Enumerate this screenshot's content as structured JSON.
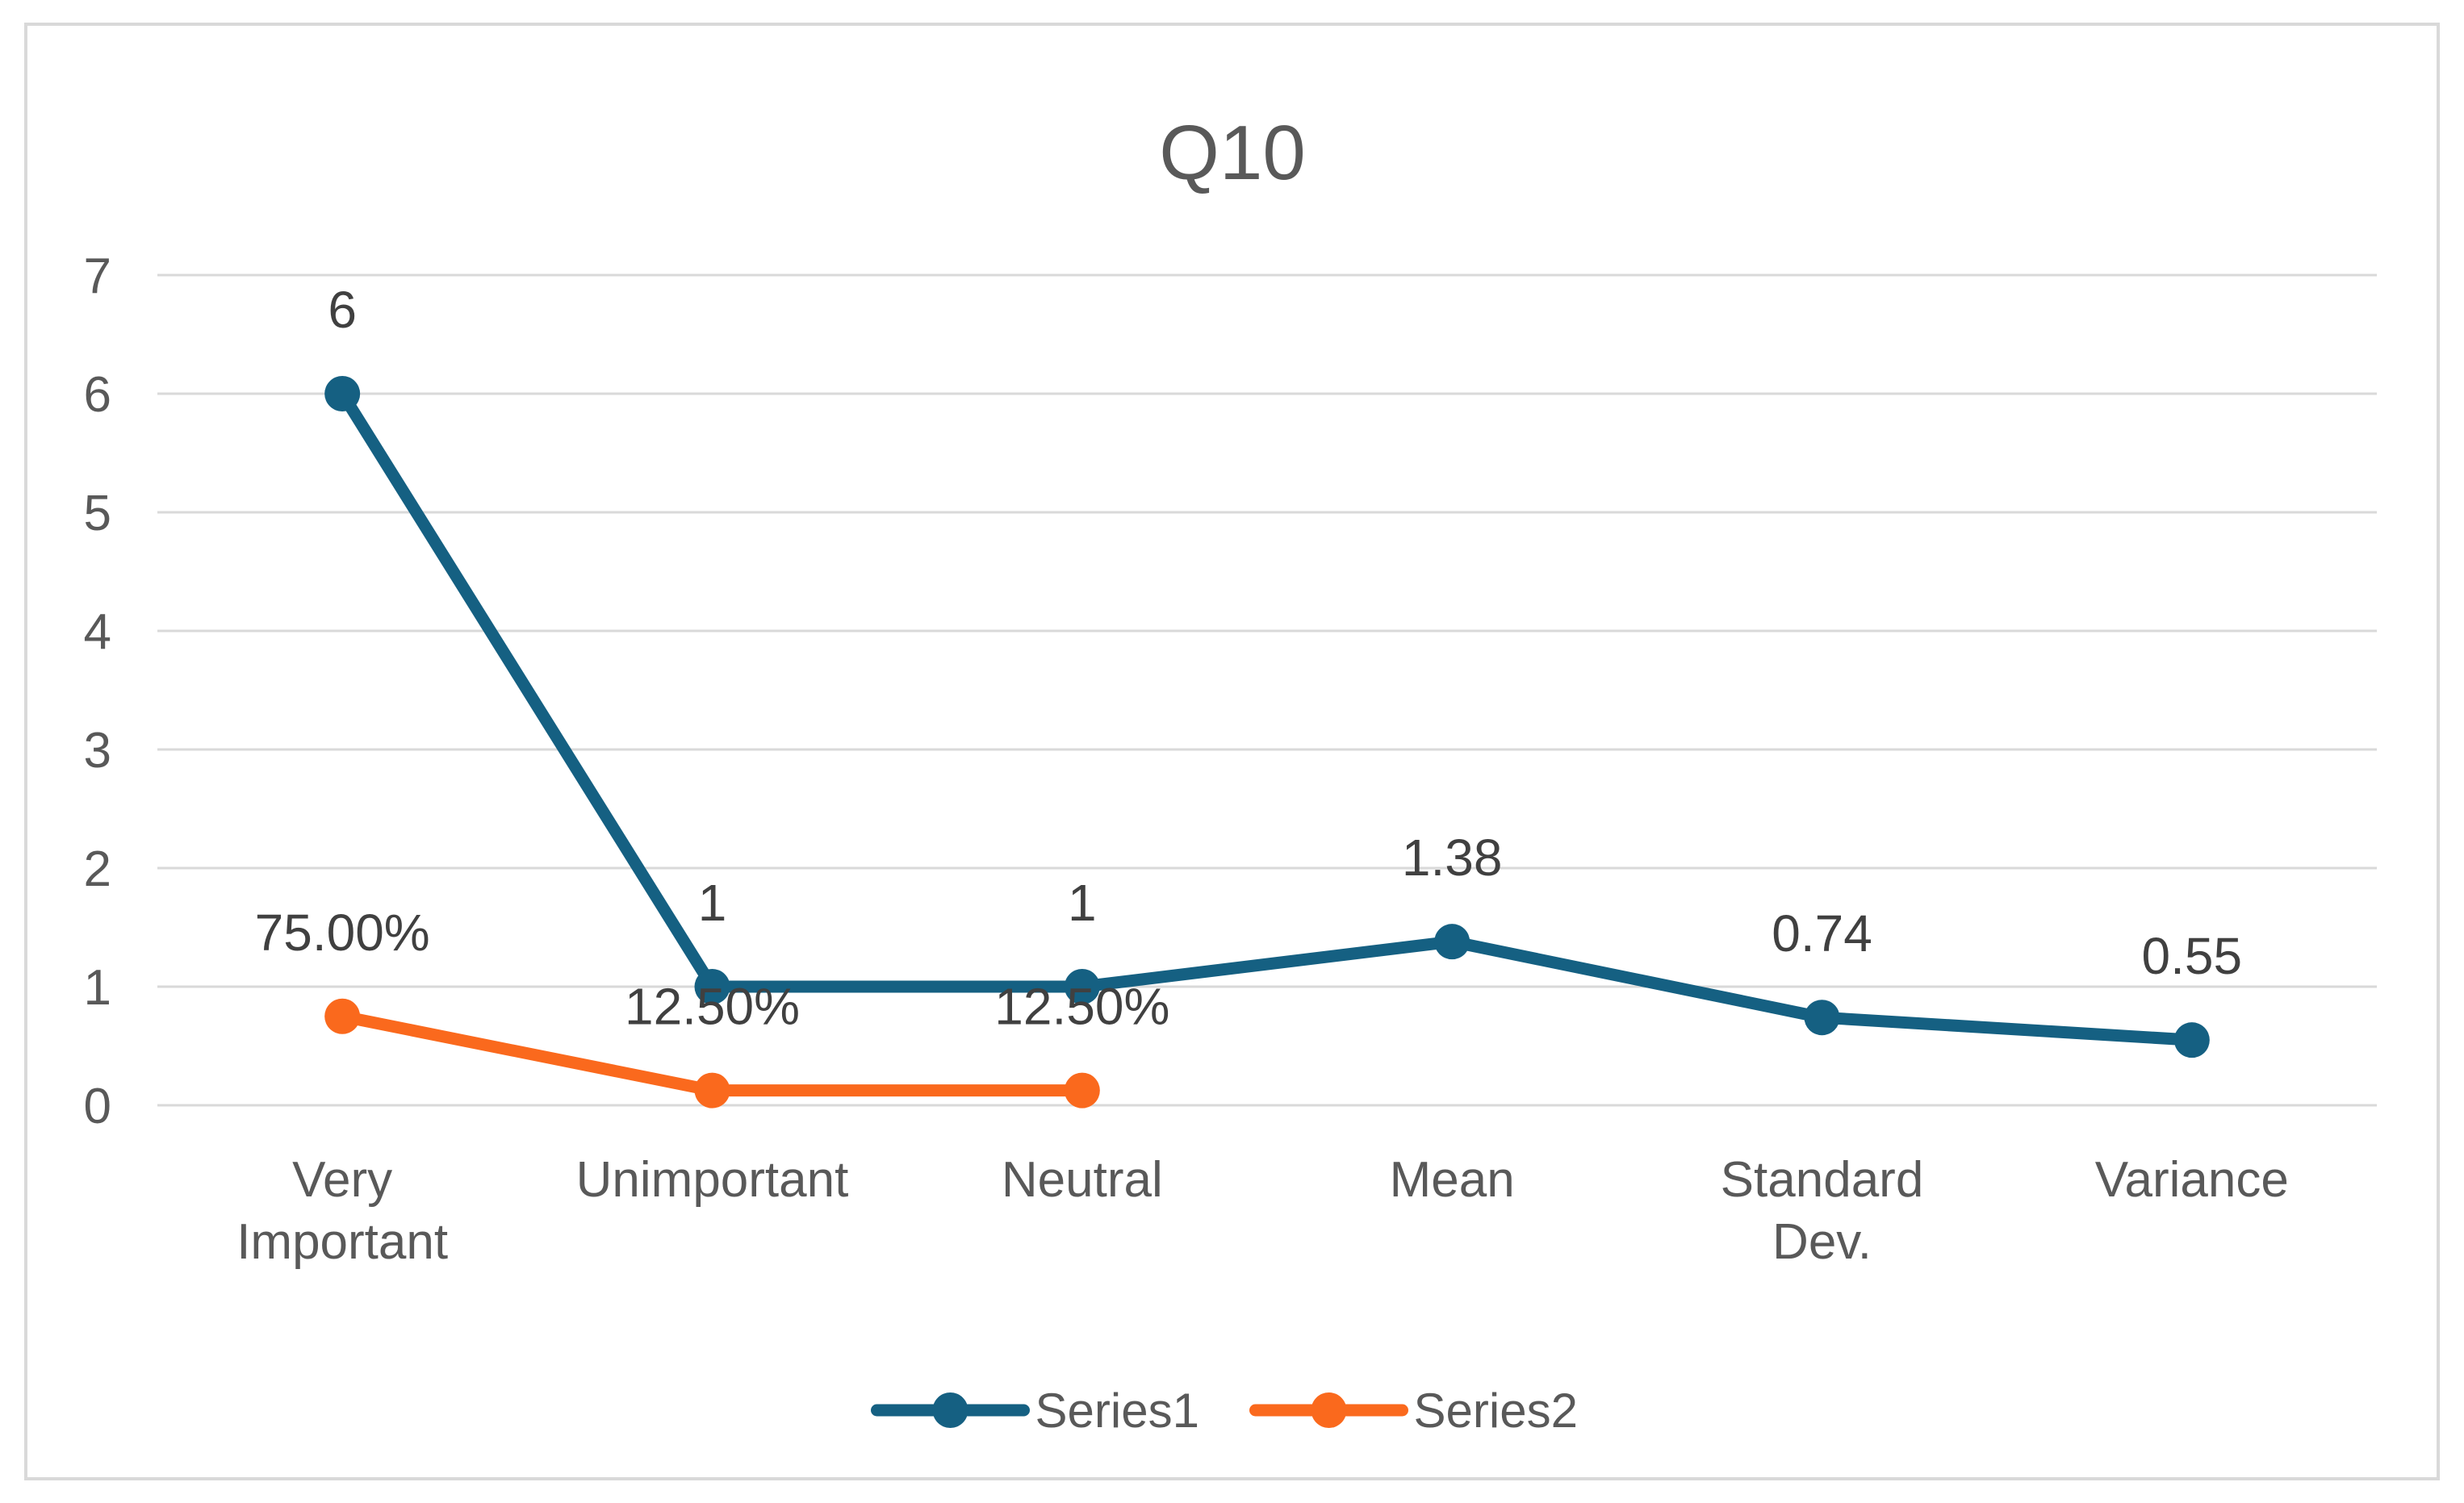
{
  "page": {
    "background_color": "#FFFFFF",
    "frame_border_color": "#D9D9D9"
  },
  "chart_data": {
    "type": "line",
    "title": "Q10",
    "title_color": "#595959",
    "xlabel": "",
    "ylabel": "",
    "ylim": [
      0,
      7
    ],
    "yticks": [
      0,
      1,
      2,
      3,
      4,
      5,
      6,
      7
    ],
    "grid": true,
    "gridline_color": "#D9D9D9",
    "axis_label_color": "#595959",
    "data_label_color": "#404040",
    "legend_position": "bottom",
    "categories": [
      "Very Important",
      "Unimportant",
      "Neutral",
      "Mean",
      "Standard Dev.",
      "Variance"
    ],
    "category_lines": [
      [
        "Very",
        "Important"
      ],
      [
        "Unimportant"
      ],
      [
        "Neutral"
      ],
      [
        "Mean"
      ],
      [
        "Standard",
        "Dev."
      ],
      [
        "Variance"
      ]
    ],
    "series": [
      {
        "name": "Series1",
        "color": "#156082",
        "values": [
          6,
          1,
          1,
          1.38,
          0.74,
          0.55
        ],
        "data_labels": [
          "6",
          "1",
          "1",
          "1.38",
          "0.74",
          "0.55"
        ]
      },
      {
        "name": "Series2",
        "color": "#FA691D",
        "values": [
          0.75,
          0.125,
          0.125,
          null,
          null,
          null
        ],
        "data_labels": [
          "75.00%",
          "12.50%",
          "12.50%",
          null,
          null,
          null
        ]
      }
    ]
  }
}
